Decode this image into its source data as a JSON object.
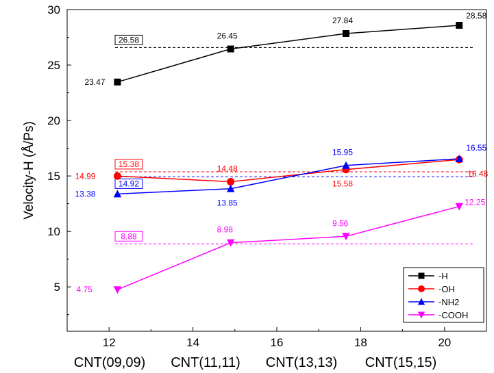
{
  "chart_data": {
    "type": "line",
    "ylabel": "Velocity-H (Å/Ps)",
    "xlim": [
      11,
      21
    ],
    "ylim": [
      1,
      30
    ],
    "x_ticks": [
      12,
      14,
      16,
      18,
      20
    ],
    "y_ticks": [
      5,
      10,
      15,
      20,
      25,
      30
    ],
    "categories": [
      "CNT(09,09)",
      "CNT(11,11)",
      "CNT(13,13)",
      "CNT(15,15)"
    ],
    "x": [
      12.2,
      14.9,
      17.65,
      20.35
    ],
    "series": [
      {
        "name": "-H",
        "color": "#000000",
        "marker": "square",
        "values": [
          23.47,
          26.45,
          27.84,
          28.58
        ],
        "labels": [
          "23.47",
          "26.45",
          "27.84",
          "28.58"
        ],
        "average": 26.58,
        "average_label": "26.58"
      },
      {
        "name": "-OH",
        "color": "#ff0000",
        "marker": "circle",
        "values": [
          14.99,
          14.48,
          15.58,
          16.48
        ],
        "labels": [
          "14.99",
          "14.48",
          "15.58",
          "16.48"
        ],
        "average": 15.38,
        "average_label": "15.38"
      },
      {
        "name": "-NH2",
        "color": "#0000ff",
        "marker": "triangle-up",
        "values": [
          13.38,
          13.85,
          15.95,
          16.55
        ],
        "labels": [
          "13.38",
          "13.85",
          "15.95",
          "16.55"
        ],
        "average": 14.92,
        "average_label": "14.92"
      },
      {
        "name": "-COOH",
        "color": "#ff00ff",
        "marker": "triangle-down",
        "values": [
          4.75,
          8.98,
          9.56,
          12.25
        ],
        "labels": [
          "4.75",
          "8.98",
          "9.56",
          "12.25"
        ],
        "average": 8.88,
        "average_label": "8.88"
      }
    ],
    "legend_position": "bottom-right",
    "grid": false
  }
}
